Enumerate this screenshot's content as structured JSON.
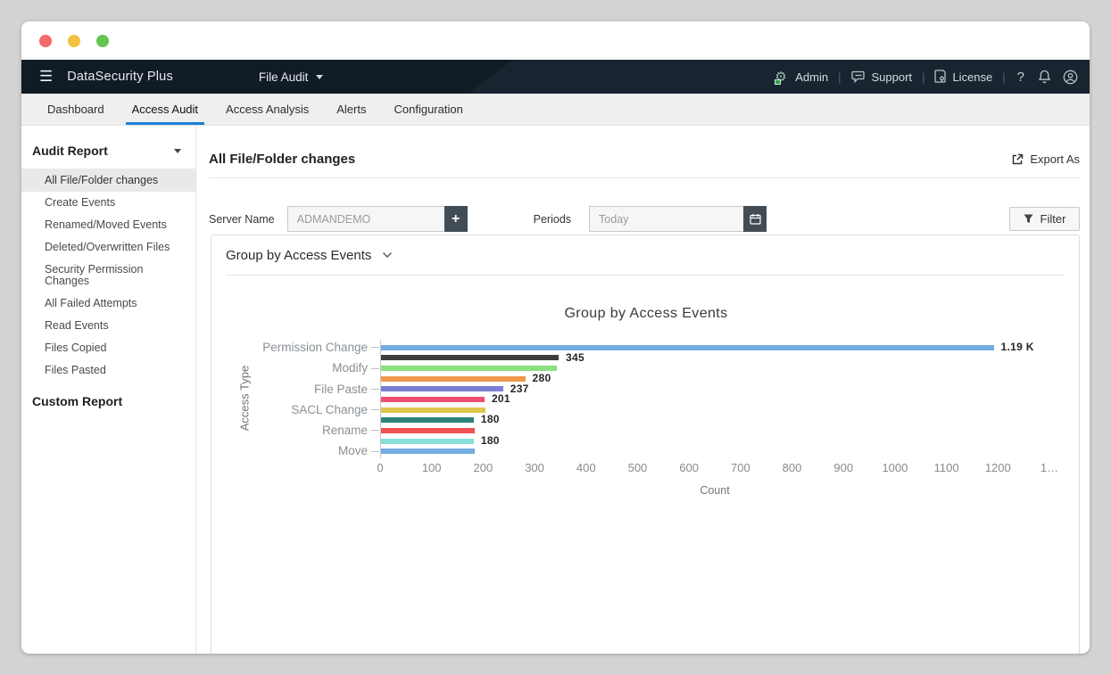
{
  "window_controls": {
    "close_color": "#f4696b",
    "minimize_color": "#f3c140",
    "zoom_color": "#63c64f"
  },
  "navbar": {
    "product": "DataSecurity Plus",
    "module": "File Audit",
    "links": [
      {
        "label": "Admin",
        "icon": "gear-icon"
      },
      {
        "label": "Support",
        "icon": "chat-icon"
      },
      {
        "label": "License",
        "icon": "license-icon"
      }
    ],
    "help_label": "?",
    "bg_color": "#18242f"
  },
  "tabs": {
    "items": [
      {
        "label": "Dashboard",
        "active": false
      },
      {
        "label": "Access Audit",
        "active": true
      },
      {
        "label": "Access Analysis",
        "active": false
      },
      {
        "label": "Alerts",
        "active": false
      },
      {
        "label": "Configuration",
        "active": false
      }
    ],
    "active_underline_color": "#1b7fd4"
  },
  "sidebar": {
    "section_title": "Audit Report",
    "items": [
      {
        "label": "All File/Folder changes",
        "selected": true
      },
      {
        "label": "Create Events",
        "selected": false
      },
      {
        "label": "Renamed/Moved Events",
        "selected": false
      },
      {
        "label": "Deleted/Overwritten Files",
        "selected": false
      },
      {
        "label": "Security Permission Changes",
        "selected": false
      },
      {
        "label": "All Failed Attempts",
        "selected": false
      },
      {
        "label": "Read Events",
        "selected": false
      },
      {
        "label": "Files Copied",
        "selected": false
      },
      {
        "label": "Files Pasted",
        "selected": false
      }
    ],
    "custom_report": "Custom Report"
  },
  "main": {
    "page_title": "All File/Folder changes",
    "export_label": "Export As",
    "filters": {
      "server_name_label": "Server Name",
      "server_name_value": "ADMANDEMO",
      "periods_label": "Periods",
      "periods_value": "Today",
      "filter_button": "Filter"
    },
    "panel_header": "Group by Access Events"
  },
  "chart_data": {
    "type": "bar",
    "orientation": "horizontal",
    "title": "Group by Access Events",
    "xlabel": "Count",
    "ylabel": "Access Type",
    "xlim": [
      0,
      1300
    ],
    "x_ticks": [
      "0",
      "100",
      "200",
      "300",
      "400",
      "500",
      "600",
      "700",
      "800",
      "900",
      "1000",
      "1100",
      "1200",
      "1…"
    ],
    "grid": false,
    "bars": [
      {
        "axis_label": "Permission Change",
        "value": 1190,
        "value_label": "1.19 K",
        "color": "#74ace2"
      },
      {
        "axis_label": "",
        "value": 345,
        "value_label": "345",
        "color": "#3d3d40"
      },
      {
        "axis_label": "Modify",
        "value": 341,
        "value_label": "",
        "color": "#8bdf80"
      },
      {
        "axis_label": "",
        "value": 280,
        "value_label": "280",
        "color": "#f0984d"
      },
      {
        "axis_label": "File Paste",
        "value": 237,
        "value_label": "237",
        "color": "#7a7ed6"
      },
      {
        "axis_label": "",
        "value": 201,
        "value_label": "201",
        "color": "#ee4e72"
      },
      {
        "axis_label": "SACL Change",
        "value": 202,
        "value_label": "",
        "color": "#dfc64b"
      },
      {
        "axis_label": "",
        "value": 180,
        "value_label": "180",
        "color": "#2f837b"
      },
      {
        "axis_label": "Rename",
        "value": 182,
        "value_label": "",
        "color": "#ef5150"
      },
      {
        "axis_label": "",
        "value": 180,
        "value_label": "180",
        "color": "#87e0d8"
      },
      {
        "axis_label": "Move",
        "value": 182,
        "value_label": "",
        "color": "#74ace2"
      }
    ]
  }
}
